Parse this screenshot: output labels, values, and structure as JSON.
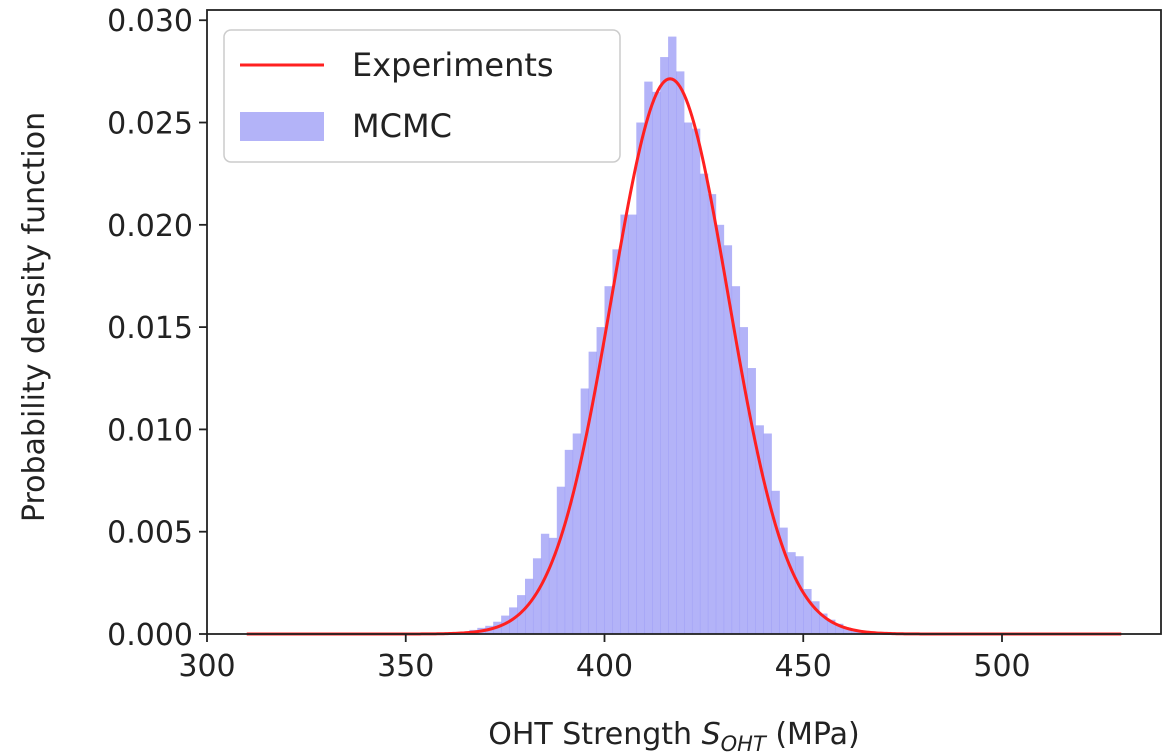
{
  "chart_data": {
    "type": "bar",
    "xlabel": {
      "prefix": "OHT Strength ",
      "symbol": "S",
      "subscript": "OHT",
      "suffix": " (MPa)"
    },
    "ylabel": "Probability density function",
    "xlim": [
      300,
      540
    ],
    "ylim": [
      0,
      0.0305
    ],
    "xticks": [
      {
        "value": 300,
        "label": "300"
      },
      {
        "value": 350,
        "label": "350"
      },
      {
        "value": 400,
        "label": "400"
      },
      {
        "value": 450,
        "label": "450"
      },
      {
        "value": 500,
        "label": "500"
      }
    ],
    "yticks": [
      {
        "value": 0.0,
        "label": "0.000"
      },
      {
        "value": 0.005,
        "label": "0.005"
      },
      {
        "value": 0.01,
        "label": "0.010"
      },
      {
        "value": 0.015,
        "label": "0.015"
      },
      {
        "value": 0.02,
        "label": "0.020"
      },
      {
        "value": 0.025,
        "label": "0.025"
      },
      {
        "value": 0.03,
        "label": "0.030"
      }
    ],
    "grid": false,
    "legend_position": "top-left",
    "series": [
      {
        "name": "Experiments",
        "kind": "line",
        "color": "#ff2020",
        "distribution": "normal",
        "mean": 416.5,
        "std": 14.7,
        "x_range": [
          310,
          530
        ]
      },
      {
        "name": "MCMC",
        "kind": "histogram",
        "color": "#8a8af5",
        "bin_width": 2,
        "bins": [
          {
            "x0": 364,
            "y": 0.0001
          },
          {
            "x0": 366,
            "y": 0.0002
          },
          {
            "x0": 368,
            "y": 0.0003
          },
          {
            "x0": 370,
            "y": 0.0004
          },
          {
            "x0": 372,
            "y": 0.0006
          },
          {
            "x0": 374,
            "y": 0.0009
          },
          {
            "x0": 376,
            "y": 0.0013
          },
          {
            "x0": 378,
            "y": 0.0019
          },
          {
            "x0": 380,
            "y": 0.0027
          },
          {
            "x0": 382,
            "y": 0.0037
          },
          {
            "x0": 384,
            "y": 0.0049
          },
          {
            "x0": 386,
            "y": 0.0047
          },
          {
            "x0": 388,
            "y": 0.0072
          },
          {
            "x0": 390,
            "y": 0.009
          },
          {
            "x0": 392,
            "y": 0.0098
          },
          {
            "x0": 394,
            "y": 0.012
          },
          {
            "x0": 396,
            "y": 0.0138
          },
          {
            "x0": 398,
            "y": 0.015
          },
          {
            "x0": 400,
            "y": 0.017
          },
          {
            "x0": 402,
            "y": 0.0188
          },
          {
            "x0": 404,
            "y": 0.0205
          },
          {
            "x0": 406,
            "y": 0.0205
          },
          {
            "x0": 408,
            "y": 0.025
          },
          {
            "x0": 410,
            "y": 0.027
          },
          {
            "x0": 412,
            "y": 0.0265
          },
          {
            "x0": 414,
            "y": 0.0282
          },
          {
            "x0": 416,
            "y": 0.0292
          },
          {
            "x0": 418,
            "y": 0.0275
          },
          {
            "x0": 420,
            "y": 0.025
          },
          {
            "x0": 422,
            "y": 0.0247
          },
          {
            "x0": 424,
            "y": 0.0225
          },
          {
            "x0": 426,
            "y": 0.0215
          },
          {
            "x0": 428,
            "y": 0.02
          },
          {
            "x0": 430,
            "y": 0.019
          },
          {
            "x0": 432,
            "y": 0.017
          },
          {
            "x0": 434,
            "y": 0.015
          },
          {
            "x0": 436,
            "y": 0.013
          },
          {
            "x0": 438,
            "y": 0.0102
          },
          {
            "x0": 440,
            "y": 0.0098
          },
          {
            "x0": 442,
            "y": 0.007
          },
          {
            "x0": 444,
            "y": 0.0052
          },
          {
            "x0": 446,
            "y": 0.004
          },
          {
            "x0": 448,
            "y": 0.0038
          },
          {
            "x0": 450,
            "y": 0.0022
          },
          {
            "x0": 452,
            "y": 0.0016
          },
          {
            "x0": 454,
            "y": 0.001
          },
          {
            "x0": 456,
            "y": 0.0007
          },
          {
            "x0": 458,
            "y": 0.0005
          },
          {
            "x0": 460,
            "y": 0.0003
          },
          {
            "x0": 462,
            "y": 0.0002
          },
          {
            "x0": 464,
            "y": 0.0001
          },
          {
            "x0": 466,
            "y": 0.0001
          },
          {
            "x0": 468,
            "y": 0.0001
          },
          {
            "x0": 470,
            "y": 0.0001
          }
        ]
      }
    ]
  }
}
